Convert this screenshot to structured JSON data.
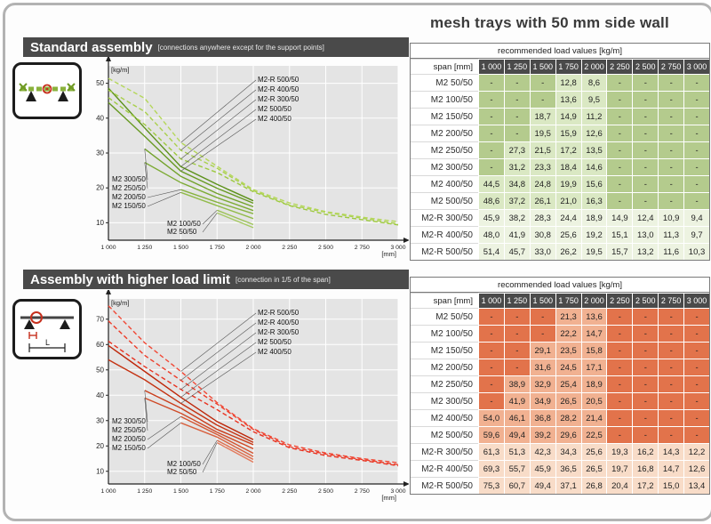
{
  "page_title": "mesh trays with 50 mm side wall",
  "sections": [
    {
      "title": "Standard assembly",
      "note": "[connections anywhere except for the support points]"
    },
    {
      "title": "Assembly with higher load limit",
      "note": "[connection in 1/5 of the span]"
    }
  ],
  "diagram_labels": {
    "span_dimension": "L"
  },
  "colors": {
    "header_bar": "#4a4a4a",
    "green": {
      "dash": "#b4cb8d",
      "val": "#dae8c3",
      "valR": "#edf3e1"
    },
    "red": {
      "dash": "#e2734b",
      "val": "#f1b191",
      "valR": "#f8dcc8"
    }
  },
  "tables": [
    {
      "header": "recommended load values [kg/m]",
      "span_label": "span [mm]",
      "spans": [
        "1 000",
        "1 250",
        "1 500",
        "1 750",
        "2 000",
        "2 250",
        "2 500",
        "2 750",
        "3 000"
      ],
      "rows": [
        {
          "label": "M2 50/50",
          "values": [
            "-",
            "-",
            "-",
            "12,8",
            "8,6",
            "-",
            "-",
            "-",
            "-"
          ]
        },
        {
          "label": "M2 100/50",
          "values": [
            "-",
            "-",
            "-",
            "13,6",
            "9,5",
            "-",
            "-",
            "-",
            "-"
          ]
        },
        {
          "label": "M2 150/50",
          "values": [
            "-",
            "-",
            "18,7",
            "14,9",
            "11,2",
            "-",
            "-",
            "-",
            "-"
          ]
        },
        {
          "label": "M2 200/50",
          "values": [
            "-",
            "-",
            "19,5",
            "15,9",
            "12,6",
            "-",
            "-",
            "-",
            "-"
          ]
        },
        {
          "label": "M2 250/50",
          "values": [
            "-",
            "27,3",
            "21,5",
            "17,2",
            "13,5",
            "-",
            "-",
            "-",
            "-"
          ]
        },
        {
          "label": "M2 300/50",
          "values": [
            "-",
            "31,2",
            "23,3",
            "18,4",
            "14,6",
            "-",
            "-",
            "-",
            "-"
          ]
        },
        {
          "label": "M2 400/50",
          "values": [
            "44,5",
            "34,8",
            "24,8",
            "19,9",
            "15,6",
            "-",
            "-",
            "-",
            "-"
          ]
        },
        {
          "label": "M2 500/50",
          "values": [
            "48,6",
            "37,2",
            "26,1",
            "21,0",
            "16,3",
            "-",
            "-",
            "-",
            "-"
          ]
        },
        {
          "label": "M2-R 300/50",
          "values": [
            "45,9",
            "38,2",
            "28,3",
            "24,4",
            "18,9",
            "14,9",
            "12,4",
            "10,9",
            "9,4"
          ]
        },
        {
          "label": "M2-R 400/50",
          "values": [
            "48,0",
            "41,9",
            "30,8",
            "25,6",
            "19,2",
            "15,1",
            "13,0",
            "11,3",
            "9,7"
          ]
        },
        {
          "label": "M2-R 500/50",
          "values": [
            "51,4",
            "45,7",
            "33,0",
            "26,2",
            "19,5",
            "15,7",
            "13,2",
            "11,6",
            "10,3"
          ]
        }
      ]
    },
    {
      "header": "recommended load values [kg/m]",
      "span_label": "span [mm]",
      "spans": [
        "1 000",
        "1 250",
        "1 500",
        "1 750",
        "2 000",
        "2 250",
        "2 500",
        "2 750",
        "3 000"
      ],
      "rows": [
        {
          "label": "M2 50/50",
          "values": [
            "-",
            "-",
            "-",
            "21,3",
            "13,6",
            "-",
            "-",
            "-",
            "-"
          ]
        },
        {
          "label": "M2 100/50",
          "values": [
            "-",
            "-",
            "-",
            "22,2",
            "14,7",
            "-",
            "-",
            "-",
            "-"
          ]
        },
        {
          "label": "M2 150/50",
          "values": [
            "-",
            "-",
            "29,1",
            "23,5",
            "15,8",
            "-",
            "-",
            "-",
            "-"
          ]
        },
        {
          "label": "M2 200/50",
          "values": [
            "-",
            "-",
            "31,6",
            "24,5",
            "17,1",
            "-",
            "-",
            "-",
            "-"
          ]
        },
        {
          "label": "M2 250/50",
          "values": [
            "-",
            "38,9",
            "32,9",
            "25,4",
            "18,9",
            "-",
            "-",
            "-",
            "-"
          ]
        },
        {
          "label": "M2 300/50",
          "values": [
            "-",
            "41,9",
            "34,9",
            "26,5",
            "20,5",
            "-",
            "-",
            "-",
            "-"
          ]
        },
        {
          "label": "M2 400/50",
          "values": [
            "54,0",
            "46,1",
            "36,8",
            "28,2",
            "21,4",
            "-",
            "-",
            "-",
            "-"
          ]
        },
        {
          "label": "M2 500/50",
          "values": [
            "59,6",
            "49,4",
            "39,2",
            "29,6",
            "22,5",
            "-",
            "-",
            "-",
            "-"
          ]
        },
        {
          "label": "M2-R 300/50",
          "values": [
            "61,3",
            "51,3",
            "42,3",
            "34,3",
            "25,6",
            "19,3",
            "16,2",
            "14,3",
            "12,2"
          ]
        },
        {
          "label": "M2-R 400/50",
          "values": [
            "69,3",
            "55,7",
            "45,9",
            "36,5",
            "26,5",
            "19,7",
            "16,8",
            "14,7",
            "12,6"
          ]
        },
        {
          "label": "M2-R 500/50",
          "values": [
            "75,3",
            "60,7",
            "49,4",
            "37,1",
            "26,8",
            "20,4",
            "17,2",
            "15,0",
            "13,4"
          ]
        }
      ]
    }
  ],
  "chart_data": [
    {
      "type": "line",
      "title": "Standard assembly — recommended load vs span",
      "ylabel": "[kg/m]",
      "xlabel": "[mm]",
      "x": [
        1000,
        1250,
        1500,
        1750,
        2000,
        2250,
        2500,
        2750,
        3000
      ],
      "xtick_labels": [
        "1 000",
        "1 250",
        "1 500",
        "1 750",
        "2 000",
        "2 250",
        "2 500",
        "2 750",
        "3 000"
      ],
      "yticks": [
        10,
        20,
        30,
        40,
        50
      ],
      "ylim": [
        5,
        55
      ],
      "grid": true,
      "series": [
        {
          "name": "M2 50/50",
          "dash": false,
          "values": [
            null,
            null,
            null,
            12.8,
            8.6,
            null,
            null,
            null,
            null
          ]
        },
        {
          "name": "M2 100/50",
          "dash": false,
          "values": [
            null,
            null,
            null,
            13.6,
            9.5,
            null,
            null,
            null,
            null
          ]
        },
        {
          "name": "M2 150/50",
          "dash": false,
          "values": [
            null,
            null,
            18.7,
            14.9,
            11.2,
            null,
            null,
            null,
            null
          ]
        },
        {
          "name": "M2 200/50",
          "dash": false,
          "values": [
            null,
            null,
            19.5,
            15.9,
            12.6,
            null,
            null,
            null,
            null
          ]
        },
        {
          "name": "M2 250/50",
          "dash": false,
          "values": [
            null,
            27.3,
            21.5,
            17.2,
            13.5,
            null,
            null,
            null,
            null
          ]
        },
        {
          "name": "M2 300/50",
          "dash": false,
          "values": [
            null,
            31.2,
            23.3,
            18.4,
            14.6,
            null,
            null,
            null,
            null
          ]
        },
        {
          "name": "M2 400/50",
          "dash": false,
          "values": [
            44.5,
            34.8,
            24.8,
            19.9,
            15.6,
            null,
            null,
            null,
            null
          ]
        },
        {
          "name": "M2 500/50",
          "dash": false,
          "values": [
            48.6,
            37.2,
            26.1,
            21.0,
            16.3,
            null,
            null,
            null,
            null
          ]
        },
        {
          "name": "M2-R 300/50",
          "dash": true,
          "values": [
            45.9,
            38.2,
            28.3,
            24.4,
            18.9,
            14.9,
            12.4,
            10.9,
            9.4
          ]
        },
        {
          "name": "M2-R 400/50",
          "dash": true,
          "values": [
            48.0,
            41.9,
            30.8,
            25.6,
            19.2,
            15.1,
            13.0,
            11.3,
            9.7
          ]
        },
        {
          "name": "M2-R 500/50",
          "dash": true,
          "values": [
            51.4,
            45.7,
            33.0,
            26.2,
            19.5,
            15.7,
            13.2,
            11.6,
            10.3
          ]
        }
      ]
    },
    {
      "type": "line",
      "title": "Assembly with higher load limit — recommended load vs span",
      "ylabel": "[kg/m]",
      "xlabel": "[mm]",
      "x": [
        1000,
        1250,
        1500,
        1750,
        2000,
        2250,
        2500,
        2750,
        3000
      ],
      "xtick_labels": [
        "1 000",
        "1 250",
        "1 500",
        "1 750",
        "2 000",
        "2 250",
        "2 500",
        "2 750",
        "3 000"
      ],
      "yticks": [
        10,
        20,
        30,
        40,
        50,
        60,
        70
      ],
      "ylim": [
        5,
        78
      ],
      "grid": true,
      "series": [
        {
          "name": "M2 50/50",
          "dash": false,
          "values": [
            null,
            null,
            null,
            21.3,
            13.6,
            null,
            null,
            null,
            null
          ]
        },
        {
          "name": "M2 100/50",
          "dash": false,
          "values": [
            null,
            null,
            null,
            22.2,
            14.7,
            null,
            null,
            null,
            null
          ]
        },
        {
          "name": "M2 150/50",
          "dash": false,
          "values": [
            null,
            null,
            29.1,
            23.5,
            15.8,
            null,
            null,
            null,
            null
          ]
        },
        {
          "name": "M2 200/50",
          "dash": false,
          "values": [
            null,
            null,
            31.6,
            24.5,
            17.1,
            null,
            null,
            null,
            null
          ]
        },
        {
          "name": "M2 250/50",
          "dash": false,
          "values": [
            null,
            38.9,
            32.9,
            25.4,
            18.9,
            null,
            null,
            null,
            null
          ]
        },
        {
          "name": "M2 300/50",
          "dash": false,
          "values": [
            null,
            41.9,
            34.9,
            26.5,
            20.5,
            null,
            null,
            null,
            null
          ]
        },
        {
          "name": "M2 400/50",
          "dash": false,
          "values": [
            54.0,
            46.1,
            36.8,
            28.2,
            21.4,
            null,
            null,
            null,
            null
          ]
        },
        {
          "name": "M2 500/50",
          "dash": false,
          "values": [
            59.6,
            49.4,
            39.2,
            29.6,
            22.5,
            null,
            null,
            null,
            null
          ]
        },
        {
          "name": "M2-R 300/50",
          "dash": true,
          "values": [
            61.3,
            51.3,
            42.3,
            34.3,
            25.6,
            19.3,
            16.2,
            14.3,
            12.2
          ]
        },
        {
          "name": "M2-R 400/50",
          "dash": true,
          "values": [
            69.3,
            55.7,
            45.9,
            36.5,
            26.5,
            19.7,
            16.8,
            14.7,
            12.6
          ]
        },
        {
          "name": "M2-R 500/50",
          "dash": true,
          "values": [
            75.3,
            60.7,
            49.4,
            37.1,
            26.8,
            20.4,
            17.2,
            15.0,
            13.4
          ]
        }
      ]
    }
  ]
}
